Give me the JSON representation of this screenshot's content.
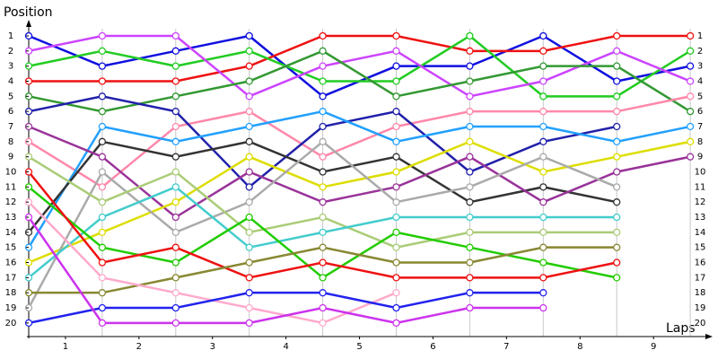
{
  "chart_data": {
    "type": "line",
    "y_label": "Position",
    "x_label": "Laps",
    "x": [
      0,
      1,
      2,
      3,
      4,
      5,
      6,
      7,
      8,
      9
    ],
    "xlim": [
      0,
      9.7
    ],
    "xticks": [
      {
        "value": 0.5,
        "label": "1"
      },
      {
        "value": 1.5,
        "label": "2"
      },
      {
        "value": 2.5,
        "label": "3"
      },
      {
        "value": 3.5,
        "label": "4"
      },
      {
        "value": 4.5,
        "label": "5"
      },
      {
        "value": 5.5,
        "label": "6"
      },
      {
        "value": 6.5,
        "label": "7"
      },
      {
        "value": 7.5,
        "label": "8"
      },
      {
        "value": 8.5,
        "label": "9"
      }
    ],
    "ylim": [
      20.9,
      0.05
    ],
    "yticks": [
      1,
      2,
      3,
      4,
      5,
      6,
      7,
      8,
      9,
      10,
      11,
      12,
      13,
      14,
      15,
      16,
      17,
      18,
      19,
      20
    ],
    "grid": true,
    "series": [
      {
        "color": "#1010e0",
        "values": [
          1,
          3,
          2,
          1,
          5,
          3,
          3,
          1,
          4,
          3
        ]
      },
      {
        "color": "#ee1111",
        "values": [
          4,
          4,
          4,
          3,
          1,
          1,
          2,
          2,
          1,
          1
        ]
      },
      {
        "color": "#22cc22",
        "values": [
          3,
          2,
          3,
          2,
          4,
          4,
          1,
          5,
          5,
          2
        ]
      },
      {
        "color": "#cc44ff",
        "values": [
          2,
          1,
          1,
          5,
          3,
          2,
          5,
          4,
          2,
          4
        ]
      },
      {
        "color": "#339933",
        "values": [
          5,
          6,
          5,
          4,
          2,
          5,
          4,
          3,
          3,
          6
        ]
      },
      {
        "color": "#ff88aa",
        "values": [
          8,
          11,
          7,
          6,
          9,
          7,
          6,
          6,
          6,
          5
        ]
      },
      {
        "color": "#2020aa",
        "values": [
          6,
          5,
          6,
          11,
          7,
          6,
          10,
          8,
          7,
          null
        ]
      },
      {
        "color": "#22a0ff",
        "values": [
          15,
          7,
          8,
          7,
          6,
          8,
          7,
          7,
          8,
          7
        ]
      },
      {
        "color": "#333333",
        "values": [
          14,
          8,
          9,
          8,
          10,
          9,
          12,
          11,
          12,
          null
        ]
      },
      {
        "color": "#993399",
        "values": [
          7,
          9,
          13,
          10,
          12,
          11,
          9,
          12,
          10,
          9
        ]
      },
      {
        "color": "#dddd00",
        "values": [
          16,
          14,
          12,
          9,
          11,
          10,
          8,
          10,
          9,
          8
        ]
      },
      {
        "color": "#aaaaaa",
        "values": [
          19,
          10,
          14,
          12,
          8,
          12,
          11,
          9,
          11,
          null
        ]
      },
      {
        "color": "#aacc77",
        "values": [
          9,
          12,
          10,
          14,
          13,
          15,
          14,
          14,
          14,
          null
        ]
      },
      {
        "color": "#44cccc",
        "values": [
          17,
          13,
          11,
          15,
          14,
          13,
          13,
          13,
          13,
          null
        ]
      },
      {
        "color": "#22cc00",
        "values": [
          11,
          15,
          16,
          13,
          17,
          14,
          15,
          16,
          17,
          null
        ]
      },
      {
        "color": "#ee1111",
        "values": [
          10,
          16,
          15,
          17,
          16,
          17,
          17,
          17,
          16,
          null
        ]
      },
      {
        "color": "#888833",
        "values": [
          18,
          18,
          17,
          16,
          15,
          16,
          16,
          15,
          15,
          null
        ]
      },
      {
        "color": "#ffaacc",
        "values": [
          12,
          17,
          18,
          19,
          20,
          18,
          null,
          null,
          null,
          null
        ]
      },
      {
        "color": "#2222ee",
        "values": [
          20,
          19,
          19,
          18,
          18,
          19,
          18,
          18,
          null,
          null
        ]
      },
      {
        "color": "#cc33ee",
        "values": [
          13,
          20,
          20,
          20,
          19,
          20,
          19,
          19,
          null,
          null
        ]
      }
    ]
  }
}
